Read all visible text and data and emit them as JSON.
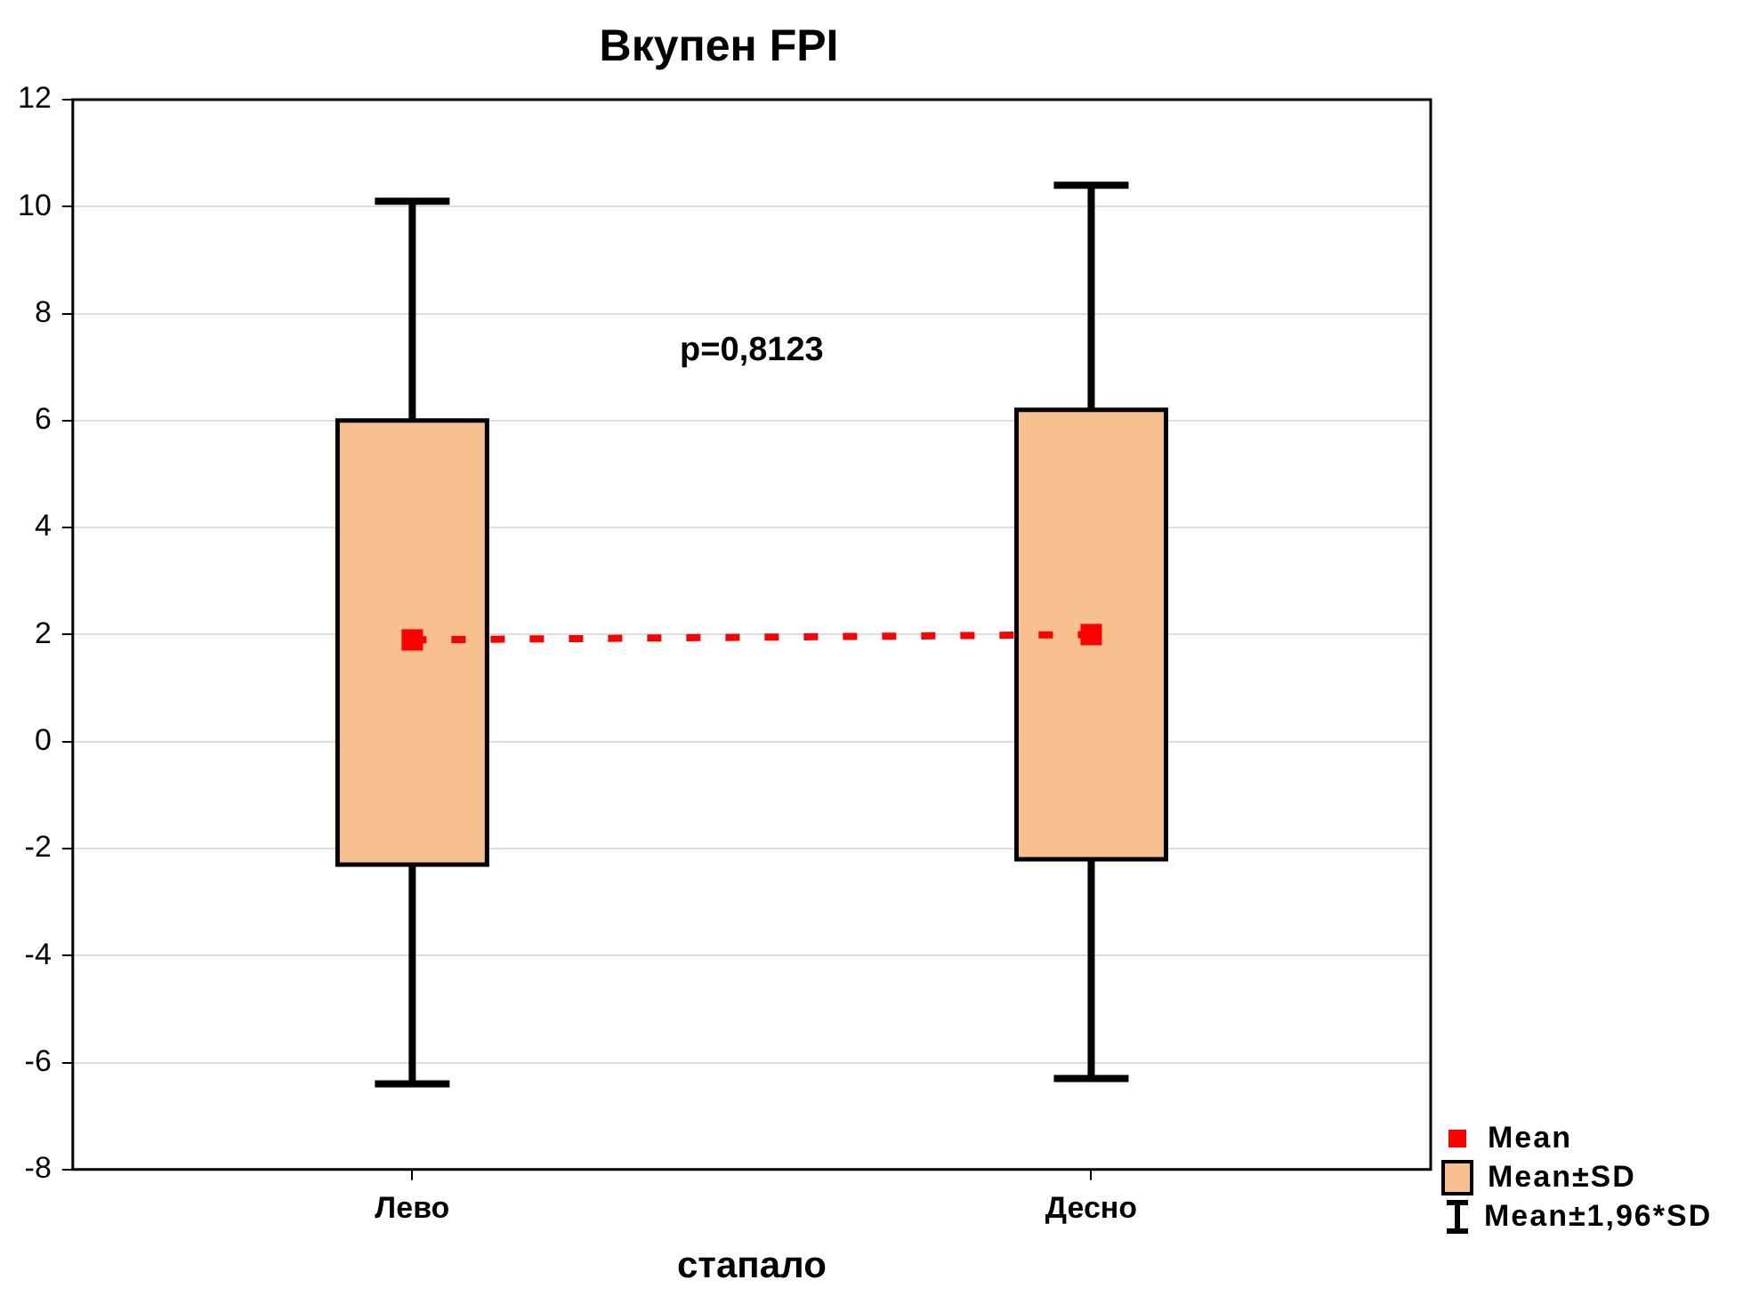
{
  "chart_data": {
    "type": "box",
    "title": "Вкупен FPI",
    "xlabel": "стапало",
    "categories": [
      "Лево",
      "Десно"
    ],
    "series": [
      {
        "name": "Mean±SD",
        "color": "#f9c08f",
        "boxes": [
          {
            "low": -6.4,
            "q1": -2.3,
            "median": 1.9,
            "q3": 6.0,
            "high": 10.1
          },
          {
            "low": -6.3,
            "q1": -2.2,
            "median": 2.0,
            "q3": 6.2,
            "high": 10.4
          }
        ]
      },
      {
        "type": "line",
        "name": "Mean",
        "color": "#ff0000",
        "values": [
          1.9,
          2.0
        ],
        "line_style": "dotted"
      }
    ],
    "annotations": [
      "p=0,8123",
      "Mean±1,96*SD"
    ],
    "ylim": [
      -8,
      12
    ],
    "yticks": [
      -8,
      -6,
      -4,
      -2,
      0,
      2,
      4,
      6,
      8,
      10,
      12
    ],
    "grid": "y",
    "legend": "bottom right"
  }
}
